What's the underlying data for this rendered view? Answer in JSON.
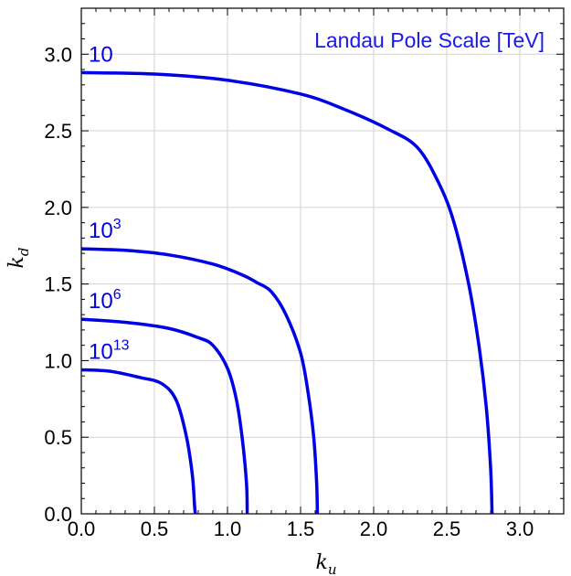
{
  "chart_data": {
    "type": "line",
    "title": "Landau Pole Scale [TeV]",
    "xlabel": {
      "base": "k",
      "sub": "u"
    },
    "ylabel": {
      "base": "k",
      "sub": "d"
    },
    "xlim": [
      0,
      3.3
    ],
    "ylim": [
      0,
      3.3
    ],
    "xticks": [
      "0.0",
      "0.5",
      "1.0",
      "1.5",
      "2.0",
      "2.5",
      "3.0"
    ],
    "yticks": [
      "0.0",
      "0.5",
      "1.0",
      "1.5",
      "2.0",
      "2.5",
      "3.0"
    ],
    "grid": true,
    "series_color": "#0000e6",
    "title_color": "#1a1ae6",
    "series": [
      {
        "label": {
          "base": "10",
          "exp": ""
        },
        "points": [
          [
            0.0,
            2.88
          ],
          [
            0.5,
            2.87
          ],
          [
            1.0,
            2.83
          ],
          [
            1.5,
            2.74
          ],
          [
            1.8,
            2.64
          ],
          [
            2.1,
            2.51
          ],
          [
            2.3,
            2.39
          ],
          [
            2.45,
            2.15
          ],
          [
            2.55,
            1.9
          ],
          [
            2.65,
            1.5
          ],
          [
            2.72,
            1.1
          ],
          [
            2.77,
            0.7
          ],
          [
            2.8,
            0.3
          ],
          [
            2.81,
            0.0
          ]
        ]
      },
      {
        "label": {
          "base": "10",
          "exp": "3"
        },
        "points": [
          [
            0.0,
            1.73
          ],
          [
            0.3,
            1.72
          ],
          [
            0.6,
            1.69
          ],
          [
            0.9,
            1.63
          ],
          [
            1.1,
            1.56
          ],
          [
            1.2,
            1.51
          ],
          [
            1.3,
            1.45
          ],
          [
            1.4,
            1.3
          ],
          [
            1.5,
            1.05
          ],
          [
            1.55,
            0.8
          ],
          [
            1.59,
            0.5
          ],
          [
            1.61,
            0.2
          ],
          [
            1.615,
            0.0
          ]
        ]
      },
      {
        "label": {
          "base": "10",
          "exp": "6"
        },
        "points": [
          [
            0.0,
            1.27
          ],
          [
            0.3,
            1.25
          ],
          [
            0.6,
            1.21
          ],
          [
            0.8,
            1.15
          ],
          [
            0.9,
            1.1
          ],
          [
            1.0,
            0.95
          ],
          [
            1.06,
            0.75
          ],
          [
            1.1,
            0.5
          ],
          [
            1.13,
            0.2
          ],
          [
            1.135,
            0.0
          ]
        ]
      },
      {
        "label": {
          "base": "10",
          "exp": "13"
        },
        "points": [
          [
            0.0,
            0.94
          ],
          [
            0.2,
            0.93
          ],
          [
            0.4,
            0.89
          ],
          [
            0.55,
            0.85
          ],
          [
            0.65,
            0.74
          ],
          [
            0.72,
            0.5
          ],
          [
            0.76,
            0.25
          ],
          [
            0.775,
            0.05
          ],
          [
            0.78,
            0.0
          ]
        ]
      }
    ]
  }
}
